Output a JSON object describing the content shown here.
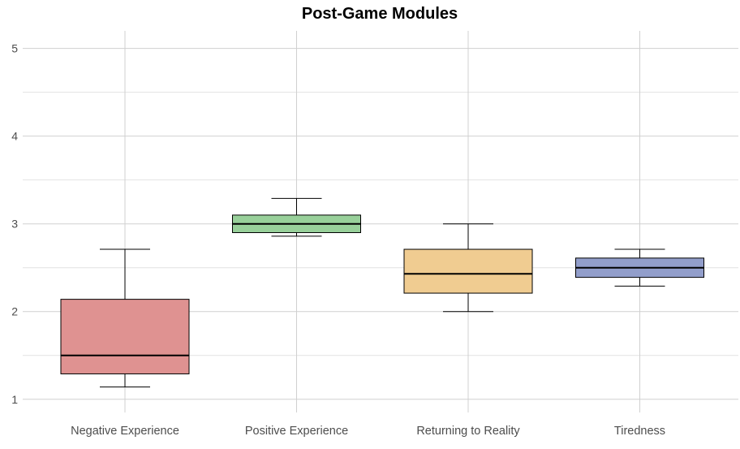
{
  "chart_data": {
    "type": "box",
    "title": "Post-Game Modules",
    "xlabel": "",
    "ylabel": "",
    "ylim": [
      0.85,
      5.2
    ],
    "y_ticks": [
      1,
      2,
      3,
      4,
      5
    ],
    "y_tick_labels": [
      "1",
      "2",
      "3",
      "4",
      "5"
    ],
    "grid": true,
    "categories": [
      "Negative Experience",
      "Positive Experience",
      "Returning to Reality",
      "Tiredness"
    ],
    "colors": [
      "#df9291",
      "#98d09a",
      "#f0cc91",
      "#929ecb"
    ],
    "boxes": [
      {
        "whisker_low": 1.14,
        "q1": 1.29,
        "median": 1.5,
        "q3": 2.14,
        "whisker_high": 2.71
      },
      {
        "whisker_low": 2.86,
        "q1": 2.9,
        "median": 3.0,
        "q3": 3.1,
        "whisker_high": 3.29
      },
      {
        "whisker_low": 2.0,
        "q1": 2.21,
        "median": 2.43,
        "q3": 2.71,
        "whisker_high": 3.0
      },
      {
        "whisker_low": 2.29,
        "q1": 2.39,
        "median": 2.5,
        "q3": 2.61,
        "whisker_high": 2.71
      }
    ]
  }
}
